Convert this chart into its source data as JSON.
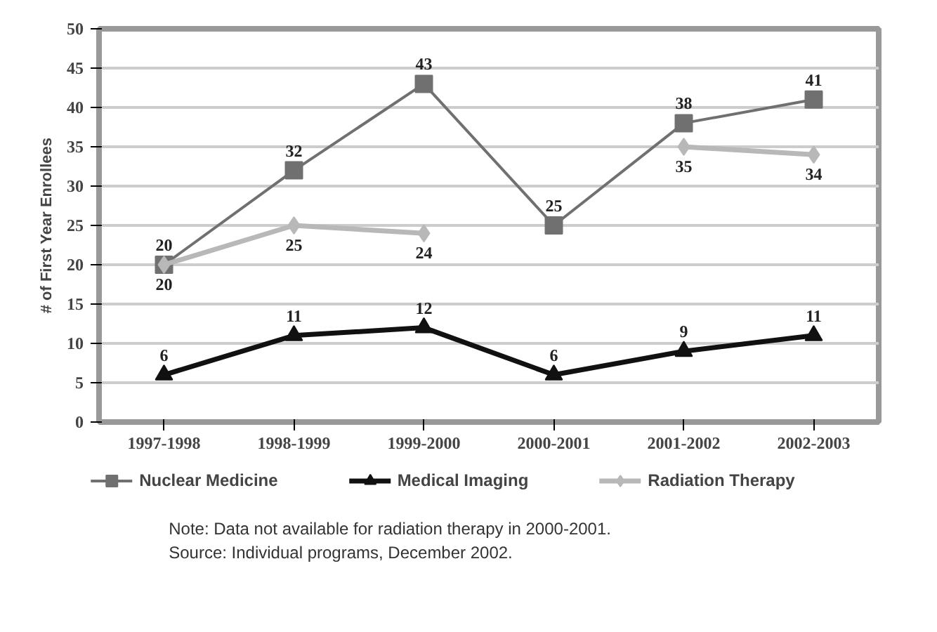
{
  "chart_data": {
    "type": "line",
    "ylabel": "# of First Year Enrollees",
    "categories": [
      "1997-1998",
      "1998-1999",
      "1999-2000",
      "2000-2001",
      "2001-2002",
      "2002-2003"
    ],
    "series": [
      {
        "name": "Nuclear Medicine",
        "color": "#707070",
        "marker": "square",
        "values": [
          20,
          32,
          43,
          25,
          38,
          41
        ]
      },
      {
        "name": "Medical Imaging",
        "color": "#111111",
        "marker": "triangle",
        "values": [
          6,
          11,
          12,
          6,
          9,
          11
        ]
      },
      {
        "name": "Radiation Therapy",
        "color": "#b8b8b8",
        "marker": "diamond",
        "values": [
          20,
          25,
          24,
          null,
          35,
          34
        ]
      }
    ],
    "ylim": [
      0,
      50
    ],
    "yticks": [
      0,
      5,
      10,
      15,
      20,
      25,
      30,
      35,
      40,
      45,
      50
    ],
    "grid": "y",
    "legend": "bottom",
    "data_labels": true,
    "annotations": [
      "Note:  Data not available for radiation therapy in 2000-2001.",
      "Source: Individual programs, December 2002."
    ]
  }
}
